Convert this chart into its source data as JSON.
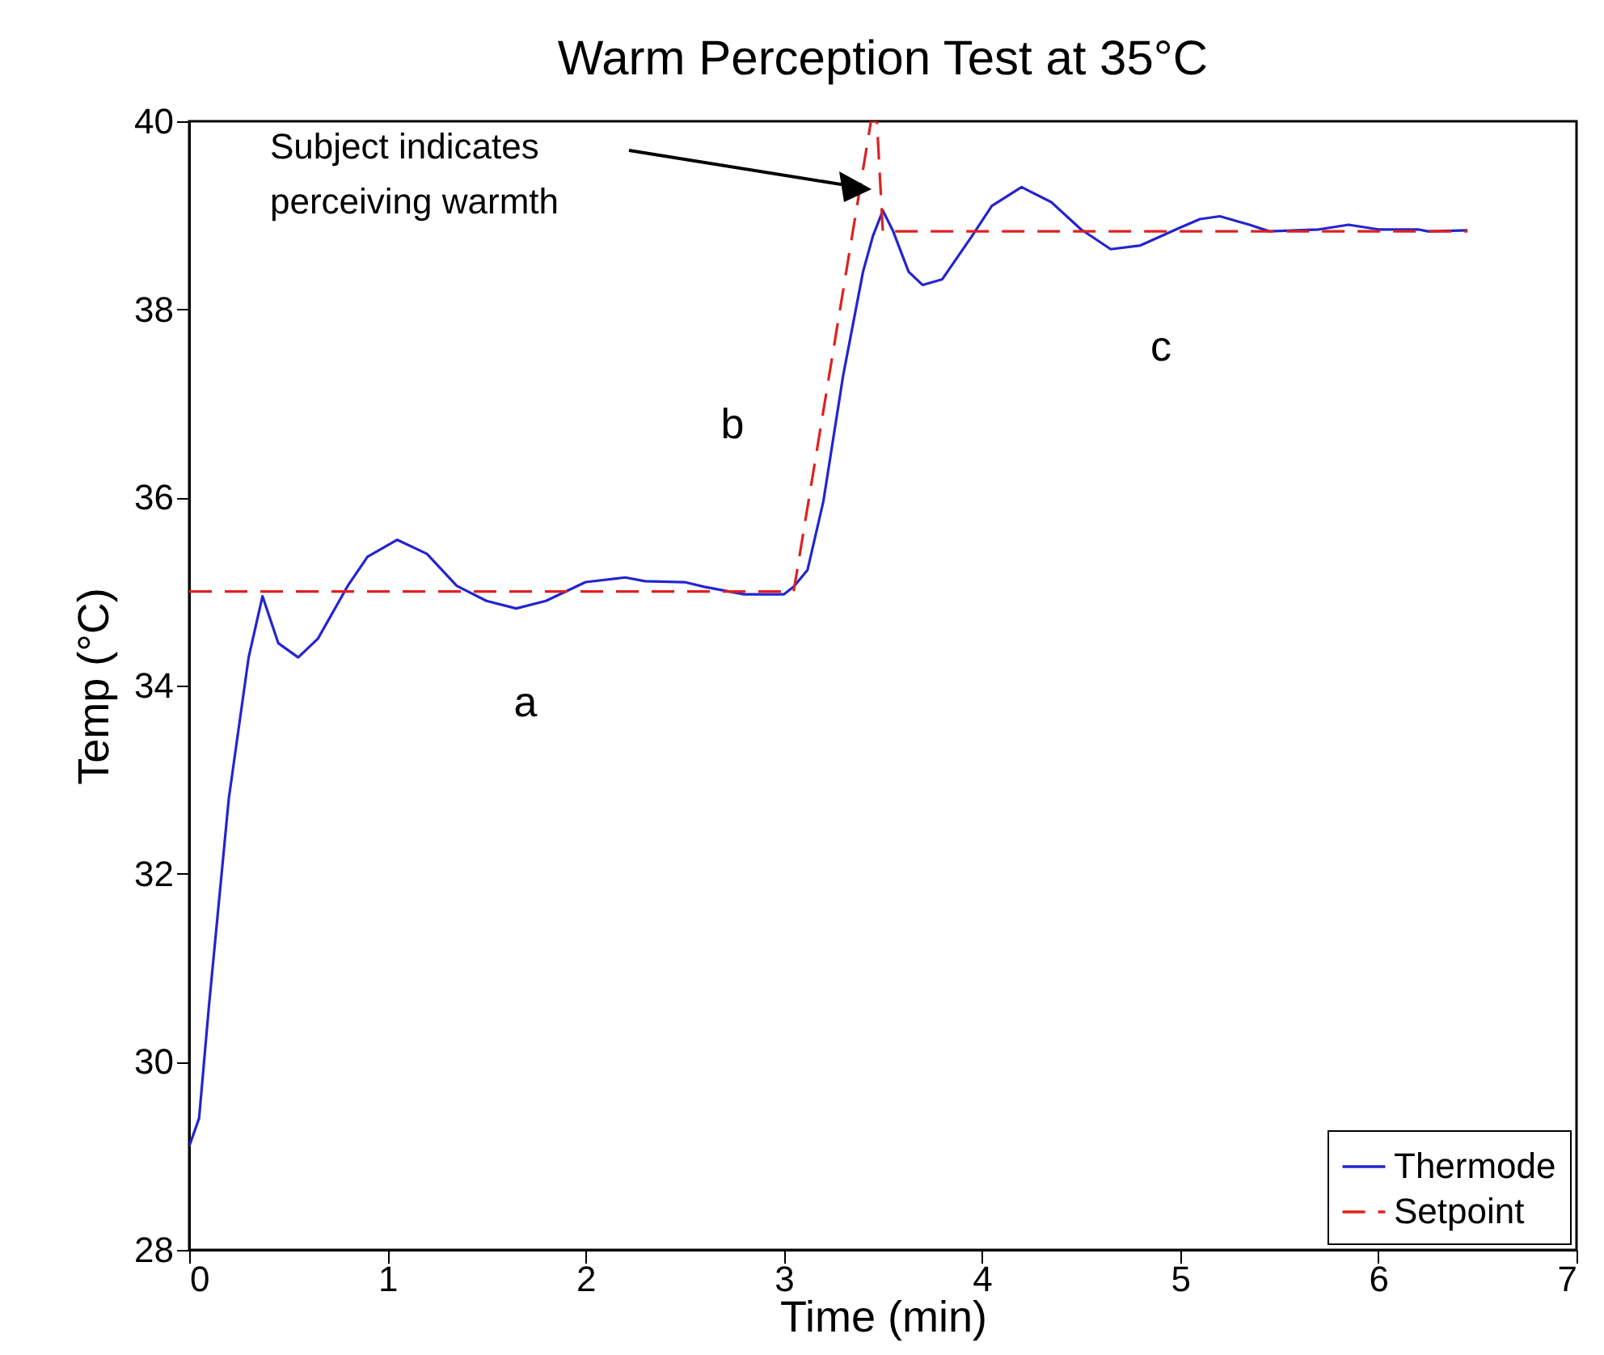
{
  "chart_data": {
    "type": "line",
    "title": "Warm Perception Test at 35°C",
    "xlabel": "Time (min)",
    "ylabel": "Temp (°C)",
    "xlim": [
      0,
      7
    ],
    "xticks": [
      0,
      1,
      2,
      3,
      4,
      5,
      6,
      7
    ],
    "ylim": [
      28,
      40
    ],
    "yticks": [
      28,
      30,
      32,
      34,
      36,
      38,
      40
    ],
    "grid": false,
    "legend": "bottom right",
    "series": [
      {
        "name": "Thermode",
        "color": "#2424d0",
        "line_style": "solid",
        "x": [
          0,
          0.05,
          0.1,
          0.2,
          0.3,
          0.37,
          0.45,
          0.55,
          0.65,
          0.8,
          0.9,
          1.05,
          1.2,
          1.35,
          1.5,
          1.65,
          1.8,
          2.0,
          2.2,
          2.3,
          2.5,
          2.6,
          2.8,
          3.0,
          3.05,
          3.12,
          3.2,
          3.3,
          3.4,
          3.45,
          3.5,
          3.55,
          3.63,
          3.7,
          3.8,
          3.95,
          4.05,
          4.2,
          4.35,
          4.5,
          4.65,
          4.8,
          5.0,
          5.1,
          5.2,
          5.35,
          5.45,
          5.7,
          5.85,
          6.0,
          6.2,
          6.25,
          6.45
        ],
        "values": [
          29.1,
          29.4,
          30.6,
          32.8,
          34.3,
          34.95,
          34.45,
          34.3,
          34.5,
          35.06,
          35.37,
          35.55,
          35.4,
          35.06,
          34.9,
          34.82,
          34.9,
          35.1,
          35.15,
          35.11,
          35.1,
          35.05,
          34.97,
          34.97,
          35.05,
          35.23,
          35.96,
          37.3,
          38.4,
          38.78,
          39.05,
          38.84,
          38.4,
          38.26,
          38.32,
          38.78,
          39.1,
          39.3,
          39.14,
          38.85,
          38.64,
          38.68,
          38.87,
          38.96,
          38.99,
          38.9,
          38.83,
          38.85,
          38.9,
          38.85,
          38.85,
          38.83,
          38.84
        ]
      },
      {
        "name": "Setpoint",
        "color": "#e02020",
        "line_style": "dashed",
        "x": [
          0,
          3.05,
          3.44,
          3.47,
          3.5,
          6.45
        ],
        "values": [
          35,
          35,
          40,
          40,
          38.83,
          38.83
        ]
      }
    ],
    "annotations": [
      "Subject indicates\nperceiving warmth",
      "a",
      "b",
      "c"
    ]
  }
}
